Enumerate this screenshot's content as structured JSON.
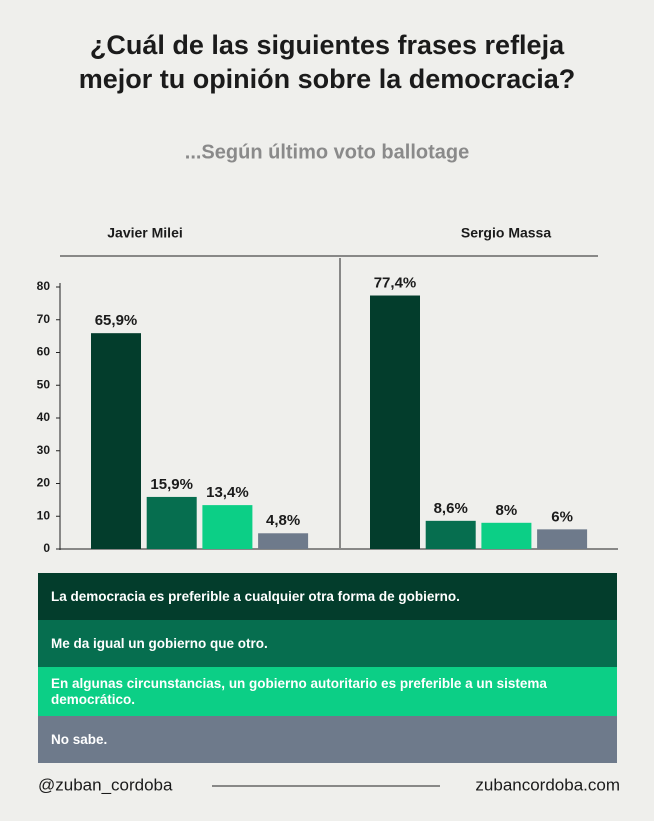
{
  "chart_data": {
    "type": "bar",
    "title": [
      "¿Cuál de las siguientes frases refleja",
      "mejor tu opinión sobre la democracia?"
    ],
    "subtitle": "...Según último voto ballotage",
    "categories": [
      "Javier Milei",
      "Sergio Massa"
    ],
    "series": [
      {
        "name": "La democracia es preferible a cualquier otra forma de gobierno.",
        "color": "#033d2c",
        "values": [
          65.9,
          77.4
        ],
        "value_labels": [
          "65,9%",
          "77,4%"
        ]
      },
      {
        "name": "Me da igual un gobierno que otro.",
        "color": "#066e4f",
        "values": [
          15.9,
          8.6
        ],
        "value_labels": [
          "15,9%",
          "8,6%"
        ]
      },
      {
        "name": "En algunas circunstancias, un gobierno autoritario es preferible a un sistema democrático.",
        "color": "#0ccf86",
        "values": [
          13.4,
          8
        ],
        "value_labels": [
          "13,4%",
          "8%"
        ]
      },
      {
        "name": "No sabe.",
        "color": "#6e7a8b",
        "values": [
          4.8,
          6
        ],
        "value_labels": [
          "4,8%",
          "6%"
        ]
      }
    ],
    "ylim": [
      0,
      80
    ],
    "yticks": [
      0,
      10,
      20,
      30,
      40,
      50,
      60,
      70,
      80
    ],
    "grid": false
  },
  "footer": {
    "left": "@zuban_cordoba",
    "right": "zubancordoba.com"
  }
}
